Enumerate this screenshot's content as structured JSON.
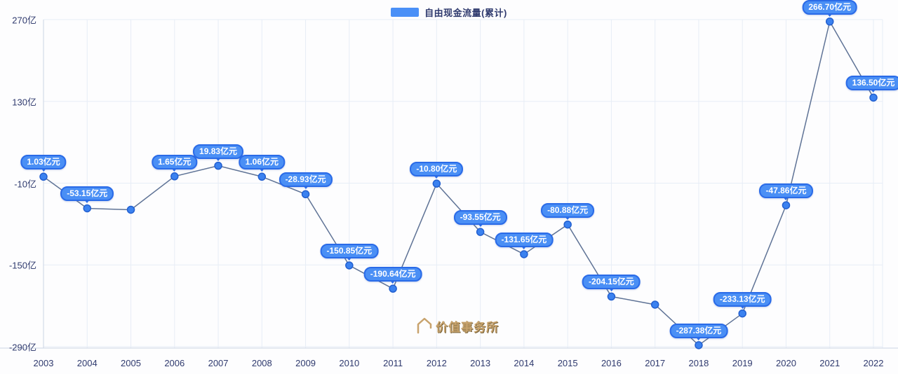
{
  "legend": {
    "swatch_color": "#4a90f7"
  },
  "watermark": {
    "text": "价值事务所"
  },
  "colors": {
    "badge_bg": "#4a8ff5",
    "badge_border": "#2a6be8",
    "line": "#5f7396",
    "point_fill": "#3b82f0",
    "point_stroke": "#2360d0",
    "grid": "#e7edf6",
    "axis": "#ccd5e4",
    "tick_text": "#2f3a6e"
  },
  "chart_data": {
    "type": "line",
    "title": "自由现金流量(累计)",
    "x": [
      "2003",
      "2004",
      "2005",
      "2006",
      "2007",
      "2008",
      "2009",
      "2010",
      "2011",
      "2012",
      "2013",
      "2014",
      "2015",
      "2016",
      "2017",
      "2018",
      "2019",
      "2020",
      "2021",
      "2022"
    ],
    "values": [
      1.03,
      -53.15,
      -55.5,
      1.65,
      19.83,
      1.06,
      -28.93,
      -150.85,
      -190.64,
      -10.8,
      -93.55,
      -131.65,
      -80.88,
      -204.15,
      -218.0,
      -287.38,
      -233.13,
      -47.86,
      266.7,
      136.5
    ],
    "labels": [
      "1.03亿元",
      "-53.15亿元",
      null,
      "1.65亿元",
      "19.83亿元",
      "1.06亿元",
      "-28.93亿元",
      "-150.85亿元",
      "-190.64亿元",
      "-10.80亿元",
      "-93.55亿元",
      "-131.65亿元",
      "-80.88亿元",
      "-204.15亿元",
      null,
      "-287.38亿元",
      "-233.13亿元",
      "-47.86亿元",
      "266.70亿元",
      "136.50亿元"
    ],
    "note": "values for 2005 and 2017 are unlabeled on chart, estimated from point position",
    "ylim": [
      -290,
      270
    ],
    "yticks": [
      {
        "value": 270,
        "label": "270亿"
      },
      {
        "value": 130,
        "label": "130亿"
      },
      {
        "value": -10,
        "label": "-10亿"
      },
      {
        "value": -150,
        "label": "-150亿"
      },
      {
        "value": -290,
        "label": "-290亿"
      }
    ],
    "grid": true,
    "legend_position": "top-center",
    "unit": "亿元"
  }
}
